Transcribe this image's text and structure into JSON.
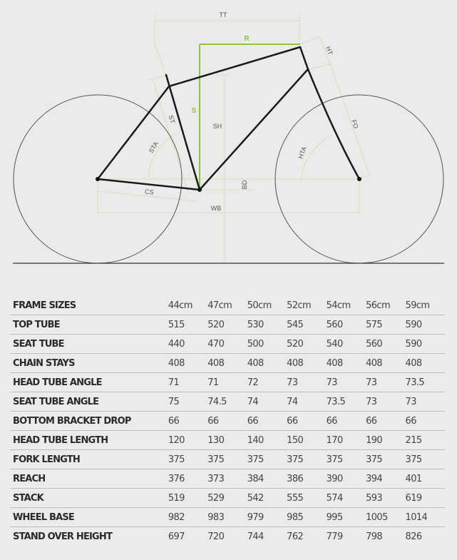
{
  "diagram": {
    "labels": {
      "tt": "TT",
      "r": "R",
      "ht": "HT",
      "s": "S",
      "st": "ST",
      "sh": "SH",
      "sta": "STA",
      "fo": "FO",
      "hta": "HTA",
      "cs": "CS",
      "bd": "BD",
      "wb": "WB"
    },
    "colors": {
      "frame": "#1a1a1a",
      "accent": "#8cc63f",
      "dimension": "#d4e3b5",
      "wheel": "#555555"
    }
  },
  "table": {
    "header": {
      "label": "FRAME SIZES",
      "sizes": [
        "44cm",
        "47cm",
        "50cm",
        "52cm",
        "54cm",
        "56cm",
        "59cm"
      ]
    },
    "rows": [
      {
        "label": "TOP TUBE",
        "values": [
          "515",
          "520",
          "530",
          "545",
          "560",
          "575",
          "590"
        ]
      },
      {
        "label": "SEAT TUBE",
        "values": [
          "440",
          "470",
          "500",
          "520",
          "540",
          "560",
          "590"
        ]
      },
      {
        "label": "CHAIN STAYS",
        "values": [
          "408",
          "408",
          "408",
          "408",
          "408",
          "408",
          "408"
        ]
      },
      {
        "label": "HEAD TUBE ANGLE",
        "values": [
          "71",
          "71",
          "72",
          "73",
          "73",
          "73",
          "73.5"
        ]
      },
      {
        "label": "SEAT TUBE ANGLE",
        "values": [
          "75",
          "74.5",
          "74",
          "74",
          "73.5",
          "73",
          "73"
        ]
      },
      {
        "label": "BOTTOM BRACKET DROP",
        "values": [
          "66",
          "66",
          "66",
          "66",
          "66",
          "66",
          "66"
        ]
      },
      {
        "label": "HEAD TUBE LENGTH",
        "values": [
          "120",
          "130",
          "140",
          "150",
          "170",
          "190",
          "215"
        ]
      },
      {
        "label": "FORK LENGTH",
        "values": [
          "375",
          "375",
          "375",
          "375",
          "375",
          "375",
          "375"
        ]
      },
      {
        "label": "REACH",
        "values": [
          "376",
          "373",
          "384",
          "386",
          "390",
          "394",
          "401"
        ]
      },
      {
        "label": "STACK",
        "values": [
          "519",
          "529",
          "542",
          "555",
          "574",
          "593",
          "619"
        ]
      },
      {
        "label": "WHEEL BASE",
        "values": [
          "982",
          "983",
          "979",
          "985",
          "995",
          "1005",
          "1014"
        ]
      },
      {
        "label": "STAND OVER HEIGHT",
        "values": [
          "697",
          "720",
          "744",
          "762",
          "779",
          "798",
          "826"
        ]
      }
    ]
  }
}
